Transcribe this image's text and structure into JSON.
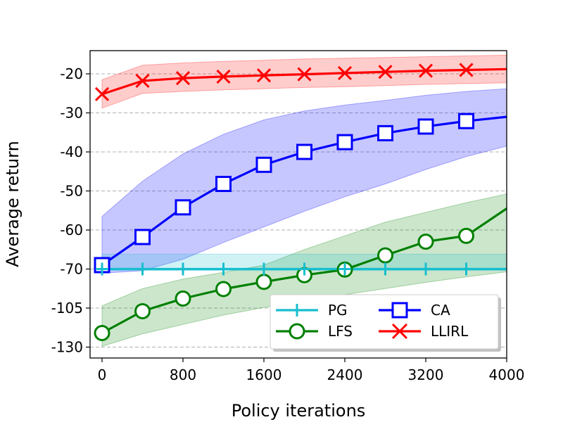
{
  "chart_data": {
    "type": "line",
    "title": "",
    "xlabel": "Policy iterations",
    "ylabel": "Average return",
    "xlim": [
      -300,
      4000
    ],
    "x_ticks": [
      {
        "value": 0,
        "label": "0"
      },
      {
        "value": 800,
        "label": "800"
      },
      {
        "value": 1600,
        "label": "1600"
      },
      {
        "value": 2400,
        "label": "2400"
      },
      {
        "value": 3200,
        "label": "3200"
      },
      {
        "value": 4000,
        "label": "4000"
      }
    ],
    "y_ticks": [
      {
        "label": "-20"
      },
      {
        "label": "-30"
      },
      {
        "label": "-40"
      },
      {
        "label": "-50"
      },
      {
        "label": "-60"
      },
      {
        "label": "-70"
      },
      {
        "label": "-105"
      },
      {
        "label": "-130"
      }
    ],
    "y_axis_note": "non-uniform scale: ticks evenly spaced, labels -20..-70 step 10, then -105, -130",
    "grid": "horizontal dashed",
    "legend_position": "lower-right",
    "series": [
      {
        "name": "PG",
        "color": "#17becf",
        "marker": "plus",
        "x": [
          0,
          400,
          800,
          1200,
          1600,
          2000,
          2400,
          2800,
          3200,
          3600,
          4000
        ],
        "y": [
          -70,
          -70,
          -70,
          -70,
          -70,
          -70,
          -70,
          -70,
          -70,
          -70,
          -70
        ],
        "band_lower": [
          -71.3,
          -71.3,
          -71.3,
          -71.3,
          -71.3,
          -71.3,
          -71.3,
          -71.3,
          -71.3,
          -71.3,
          -71.3
        ],
        "band_upper": [
          -66.2,
          -66.2,
          -66.2,
          -66.2,
          -66.2,
          -66.2,
          -66.2,
          -66.2,
          -66.2,
          -66.2,
          -66.2
        ],
        "markers_at": [
          0,
          400,
          800,
          1200,
          1600,
          2000,
          2400,
          2800,
          3200,
          3600
        ]
      },
      {
        "name": "CA",
        "color": "#0000ff",
        "marker": "square",
        "x": [
          0,
          400,
          800,
          1200,
          1600,
          2000,
          2400,
          2800,
          3200,
          3600,
          4000
        ],
        "y": [
          -69,
          -61.8,
          -54.2,
          -48.2,
          -43.3,
          -40,
          -37.5,
          -35.2,
          -33.5,
          -32.1,
          -31
        ],
        "band_lower": [
          -73.8,
          -71.5,
          -67.5,
          -63.2,
          -59.2,
          -55.2,
          -51.5,
          -48.2,
          -44.5,
          -41.2,
          -38.5
        ],
        "band_upper": [
          -56.5,
          -47.5,
          -40.5,
          -35.5,
          -31.8,
          -29.5,
          -28,
          -26.8,
          -25.5,
          -24.5,
          -23.8
        ]
      },
      {
        "name": "LFS",
        "color": "#008000",
        "marker": "circle",
        "x": [
          0,
          400,
          800,
          1200,
          1600,
          2000,
          2400,
          2800,
          3200,
          3600,
          4000
        ],
        "y": [
          -121,
          -107,
          -96.5,
          -88,
          -81.5,
          -75.5,
          -70.5,
          -66.5,
          -63,
          -61.5,
          -54.5
        ],
        "band_lower": [
          -129.5,
          -121.5,
          -115.5,
          -109.5,
          -104.5,
          -98.5,
          -93,
          -87.5,
          -82,
          -77,
          -72.5
        ],
        "band_upper": [
          -103,
          -87.5,
          -79,
          -73,
          -69,
          -65,
          -61.5,
          -58,
          -55.5,
          -53,
          -50.8
        ]
      },
      {
        "name": "LLIRL",
        "color": "#ff0000",
        "marker": "x",
        "x": [
          0,
          400,
          800,
          1200,
          1600,
          2000,
          2400,
          2800,
          3200,
          3600,
          4000
        ],
        "y": [
          -25.2,
          -21.8,
          -21.1,
          -20.7,
          -20.4,
          -20.1,
          -19.8,
          -19.5,
          -19.2,
          -19,
          -18.8
        ],
        "band_lower": [
          -28.8,
          -25,
          -24.5,
          -24.1,
          -23.8,
          -23.5,
          -23.3,
          -23,
          -22.7,
          -22.5,
          -22.3
        ],
        "band_upper": [
          -21.5,
          -17.8,
          -17.2,
          -16.8,
          -16.5,
          -16.2,
          -16,
          -15.8,
          -15.6,
          -15.4,
          -15.2
        ]
      }
    ],
    "legend": [
      {
        "name": "PG",
        "marker": "plus",
        "color": "#17becf"
      },
      {
        "name": "CA",
        "marker": "square",
        "color": "#0000ff"
      },
      {
        "name": "LFS",
        "marker": "circle",
        "color": "#008000"
      },
      {
        "name": "LLIRL",
        "marker": "x",
        "color": "#ff0000"
      }
    ]
  }
}
